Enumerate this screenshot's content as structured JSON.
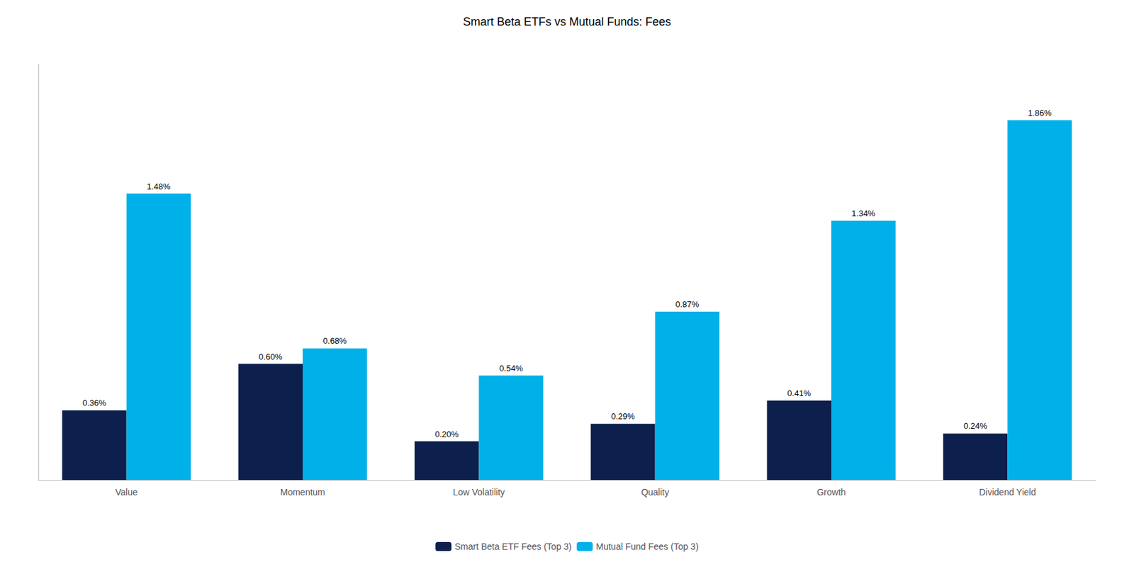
{
  "chart_data": {
    "type": "bar",
    "title": "Smart Beta ETFs vs Mutual Funds: Fees",
    "categories": [
      "Value",
      "Momentum",
      "Low Volatility",
      "Quality",
      "Growth",
      "Dividend Yield"
    ],
    "series": [
      {
        "name": "Smart Beta ETF Fees (Top 3)",
        "color": "#0d1f4c",
        "values": [
          0.36,
          0.6,
          0.2,
          0.29,
          0.41,
          0.24
        ],
        "value_labels": [
          "0.36%",
          "0.60%",
          "0.20%",
          "0.29%",
          "0.41%",
          "0.24%"
        ]
      },
      {
        "name": "Mutual Fund Fees (Top 3)",
        "color": "#00b0e8",
        "values": [
          1.48,
          0.68,
          0.54,
          0.87,
          1.34,
          1.86
        ],
        "value_labels": [
          "1.48%",
          "0.68%",
          "0.54%",
          "0.87%",
          "1.34%",
          "1.86%"
        ]
      }
    ],
    "ylim": [
      0,
      2.15
    ],
    "grid": false,
    "legend": "bottom",
    "data_labels": true,
    "tick_labels": "x"
  }
}
